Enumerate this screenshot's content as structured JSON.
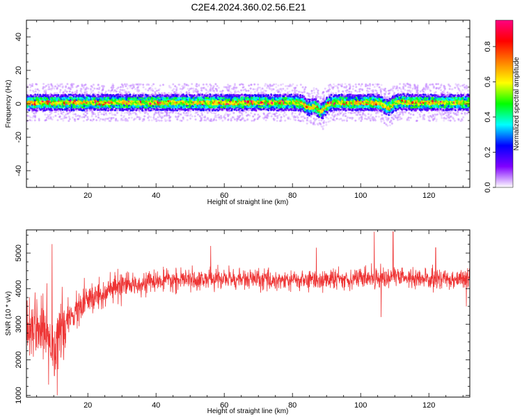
{
  "figure": {
    "title": "C2E4.2024.360.02.56.E21"
  },
  "chart_data": [
    {
      "type": "heatmap",
      "xlabel": "Height of straight line (km)",
      "ylabel": "Frequency (Hz)",
      "xlim": [
        2,
        132
      ],
      "ylim": [
        -50,
        50
      ],
      "x_ticks": [
        20,
        40,
        60,
        80,
        100,
        120
      ],
      "y_ticks": [
        -40,
        -20,
        0,
        20,
        40
      ],
      "grid": false,
      "colorbar": {
        "label": "Normalized spectral amplitude",
        "range": [
          0,
          0.95
        ],
        "ticks": [
          0.0,
          0.2,
          0.4,
          0.6,
          0.8
        ],
        "tick_labels": [
          "0.0",
          "0.2",
          "0.4",
          "0.6",
          "0.8"
        ],
        "colormap": [
          "#ffffff",
          "#8000ff",
          "#0000ff",
          "#00ffff",
          "#00ff00",
          "#ffff00",
          "#ff8000",
          "#ff0000",
          "#ff0080"
        ]
      },
      "signal": {
        "center_frequency_hz": 1,
        "core_halfwidth_hz": 1.5,
        "spread_halfwidth_hz": 5,
        "dips": [
          {
            "x": 85,
            "y": -2
          },
          {
            "x": 88.5,
            "y": -4
          },
          {
            "x": 108,
            "y": -2
          },
          {
            "x": 112,
            "y": 1.5
          }
        ]
      }
    },
    {
      "type": "line",
      "xlabel": "Height of straight line (km)",
      "ylabel": "SNR (10 * v/v)",
      "xlim": [
        2,
        132
      ],
      "ylim": [
        950,
        5650
      ],
      "x_ticks": [
        20,
        40,
        60,
        80,
        100,
        120
      ],
      "y_ticks": [
        1000,
        2000,
        3000,
        4000,
        5000
      ],
      "grid": false,
      "series": [
        {
          "color": "#ee3333",
          "trend_x": [
            2,
            5,
            8,
            10,
            11,
            13,
            16,
            20,
            25,
            30,
            35,
            40,
            50,
            60,
            70,
            80,
            90,
            100,
            110,
            120,
            132
          ],
          "trend_y": [
            3000,
            3000,
            2700,
            2500,
            2500,
            2900,
            3300,
            3650,
            3900,
            4050,
            4150,
            4200,
            4250,
            4280,
            4250,
            4230,
            4250,
            4300,
            4330,
            4250,
            4300
          ],
          "spikes": [
            {
              "x": 8.0,
              "y": 4150
            },
            {
              "x": 8.5,
              "y": 1300
            },
            {
              "x": 9.5,
              "y": 5250
            },
            {
              "x": 10.2,
              "y": 1550
            },
            {
              "x": 11.0,
              "y": 1000
            },
            {
              "x": 12.5,
              "y": 4050
            },
            {
              "x": 19.0,
              "y": 4300
            },
            {
              "x": 56.0,
              "y": 5200
            },
            {
              "x": 87.0,
              "y": 5150
            },
            {
              "x": 104.0,
              "y": 5600
            },
            {
              "x": 106.0,
              "y": 3200
            },
            {
              "x": 109.5,
              "y": 5600
            },
            {
              "x": 122.0,
              "y": 5150
            },
            {
              "x": 131.0,
              "y": 3500
            }
          ]
        }
      ]
    }
  ]
}
